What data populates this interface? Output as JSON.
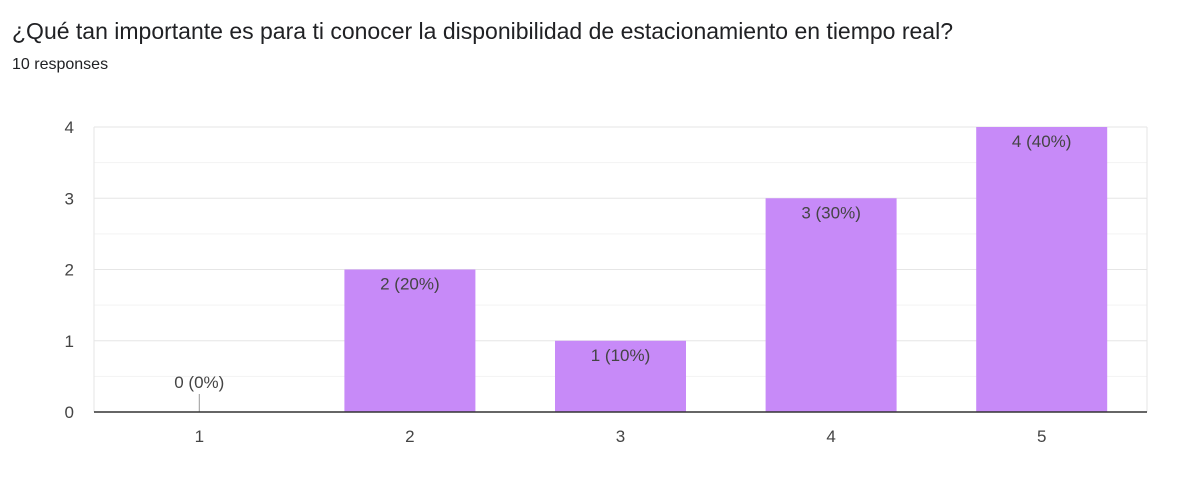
{
  "header": {
    "title": "¿Qué tan importante es para ti conocer la disponibilidad de estacionamiento en tiempo real?",
    "responses": "10 responses"
  },
  "colors": {
    "bar": "#c78af8",
    "axis": "#333333",
    "grid_major": "#e6e6e6",
    "grid_minor": "#f3f3f3"
  },
  "chart_data": {
    "type": "bar",
    "categories": [
      "1",
      "2",
      "3",
      "4",
      "5"
    ],
    "values": [
      0,
      2,
      1,
      3,
      4
    ],
    "data_labels": [
      "0 (0%)",
      "2 (20%)",
      "1 (10%)",
      "3 (30%)",
      "4 (40%)"
    ],
    "yticks": [
      "0",
      "1",
      "2",
      "3",
      "4"
    ],
    "ylim": [
      0,
      4
    ],
    "grid": true,
    "legend": "none"
  }
}
